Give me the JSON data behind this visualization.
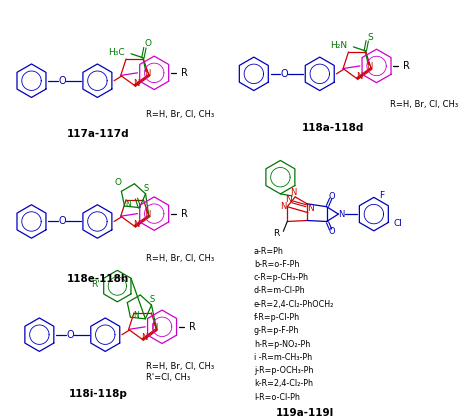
{
  "background_color": "#ffffff",
  "colors": {
    "blue": "#0000bb",
    "red": "#cc0000",
    "green": "#007700",
    "purple": "#cc00cc",
    "black": "#000000"
  },
  "list_119": [
    "a-R=Ph",
    "b-R=o-F-Ph",
    "c-R=p-CH₃-Ph",
    "d-R=m-Cl-Ph",
    "e-R=2,4-Cl₂-PhOCH₂",
    "f-R=p-Cl-Ph",
    "g-R=p-F-Ph",
    "h-R=p-NO₂-Ph",
    "i -R=m-CH₃-Ph",
    "j-R=p-OCH₃-Ph",
    "k-R=2,4-Cl₂-Ph",
    "l-R=o-Cl-Ph"
  ],
  "figsize": [
    4.74,
    4.18
  ],
  "dpi": 100
}
